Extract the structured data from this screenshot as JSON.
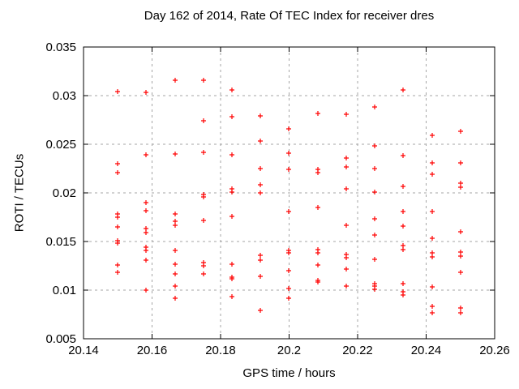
{
  "chart": {
    "title": "Day 162 of 2014, Rate Of TEC Index for receiver dres",
    "xlabel": "GPS time / hours",
    "ylabel": "ROTI / TECUs"
  },
  "colors": {
    "background": "#ffffff",
    "text": "#000000",
    "axis_border": "#000000",
    "grid": "#a6a6a6",
    "marker": "#ff0000"
  },
  "chart_data": {
    "type": "scatter",
    "title": "Day 162 of 2014, Rate Of TEC Index for receiver dres",
    "xlabel": "GPS time / hours",
    "ylabel": "ROTI / TECUs",
    "xlim": [
      20.14,
      20.26
    ],
    "ylim": [
      0.005,
      0.035
    ],
    "grid": true,
    "legend": "none",
    "marker": "plus",
    "marker_size": 7,
    "marker_color": "#ff0000",
    "x_ticks": [
      20.14,
      20.16,
      20.18,
      20.2,
      20.22,
      20.24,
      20.26
    ],
    "x_tick_labels": [
      "20.14",
      "20.16",
      "20.18",
      "20.2",
      "20.22",
      "20.24",
      "20.26"
    ],
    "y_ticks": [
      0.005,
      0.01,
      0.015,
      0.02,
      0.025,
      0.03,
      0.035
    ],
    "y_tick_labels": [
      "0.005",
      "0.01",
      "0.015",
      "0.02",
      "0.025",
      "0.03",
      "0.035"
    ],
    "columns": [
      {
        "t": 20.15,
        "roti": [
          0.0304,
          0.023,
          0.0221,
          0.0178,
          0.0175,
          0.0165,
          0.0151,
          0.0148,
          0.0126,
          0.0118
        ]
      },
      {
        "t": 20.1583,
        "roti": [
          0.0303,
          0.0239,
          0.019,
          0.0182,
          0.0163,
          0.0159,
          0.0144,
          0.0141,
          0.0131,
          0.01
        ]
      },
      {
        "t": 20.1667,
        "roti": [
          0.0316,
          0.024,
          0.0178,
          0.0171,
          0.0167,
          0.0141,
          0.0127,
          0.0117,
          0.0104,
          0.0092
        ]
      },
      {
        "t": 20.175,
        "roti": [
          0.0316,
          0.0274,
          0.0242,
          0.0198,
          0.0196,
          0.0172,
          0.0128,
          0.0125,
          0.0117
        ]
      },
      {
        "t": 20.1833,
        "roti": [
          0.0306,
          0.0278,
          0.0239,
          0.0204,
          0.0201,
          0.0176,
          0.0127,
          0.0113,
          0.0112,
          0.0093
        ]
      },
      {
        "t": 20.1917,
        "roti": [
          0.0279,
          0.0253,
          0.0225,
          0.0208,
          0.02,
          0.0136,
          0.0131,
          0.0114,
          0.0079
        ]
      },
      {
        "t": 20.2,
        "roti": [
          0.0266,
          0.0241,
          0.0224,
          0.0181,
          0.0141,
          0.0138,
          0.012,
          0.0102,
          0.0092
        ]
      },
      {
        "t": 20.2083,
        "roti": [
          0.0282,
          0.0224,
          0.0221,
          0.0185,
          0.0142,
          0.0138,
          0.0126,
          0.011,
          0.0108
        ]
      },
      {
        "t": 20.2167,
        "roti": [
          0.0281,
          0.0236,
          0.0227,
          0.0204,
          0.0167,
          0.0137,
          0.0133,
          0.0122,
          0.0104
        ]
      },
      {
        "t": 20.225,
        "roti": [
          0.0288,
          0.0248,
          0.0225,
          0.0201,
          0.0173,
          0.0157,
          0.0132,
          0.0107,
          0.0104,
          0.0101
        ]
      },
      {
        "t": 20.2333,
        "roti": [
          0.0306,
          0.0238,
          0.0207,
          0.0181,
          0.0166,
          0.0146,
          0.0142,
          0.0107,
          0.0098,
          0.0095
        ]
      },
      {
        "t": 20.2417,
        "roti": [
          0.0259,
          0.0231,
          0.0219,
          0.0181,
          0.0153,
          0.0138,
          0.0134,
          0.0103,
          0.0083,
          0.0077
        ]
      },
      {
        "t": 20.25,
        "roti": [
          0.0263,
          0.0231,
          0.021,
          0.0206,
          0.016,
          0.0139,
          0.0135,
          0.0118,
          0.0082,
          0.0077
        ]
      }
    ]
  }
}
